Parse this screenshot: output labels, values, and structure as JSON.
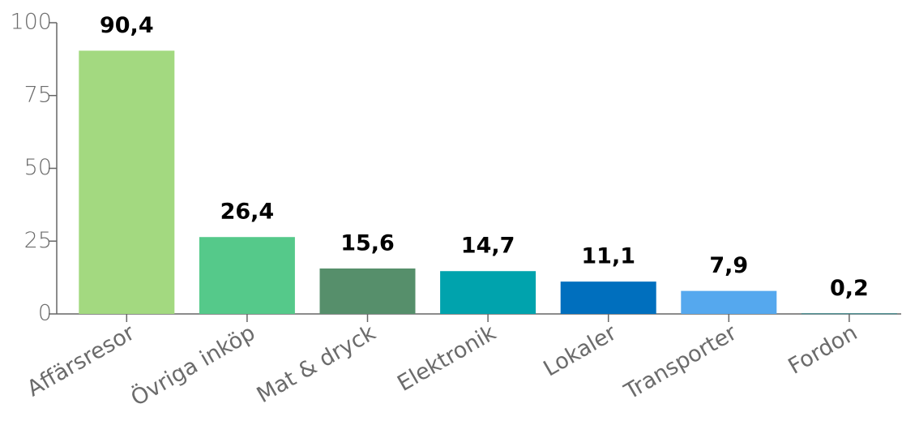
{
  "chart_data": {
    "type": "bar",
    "categories": [
      "Affärsresor",
      "Övriga inköp",
      "Mat & dryck",
      "Elektronik",
      "Lokaler",
      "Transporter",
      "Fordon"
    ],
    "values": [
      90.4,
      26.4,
      15.6,
      14.7,
      11.1,
      7.9,
      0.2
    ],
    "value_labels": [
      "90,4",
      "26,4",
      "15,6",
      "14,7",
      "11,1",
      "7,9",
      "0,2"
    ],
    "colors": [
      "#a3d980",
      "#55c98a",
      "#568f6b",
      "#00a3ad",
      "#006fbe",
      "#55a8ee",
      "#2a7f84"
    ],
    "ylim": [
      0,
      100
    ],
    "yticks": [
      0,
      25,
      50,
      75,
      100
    ],
    "grid": false
  }
}
